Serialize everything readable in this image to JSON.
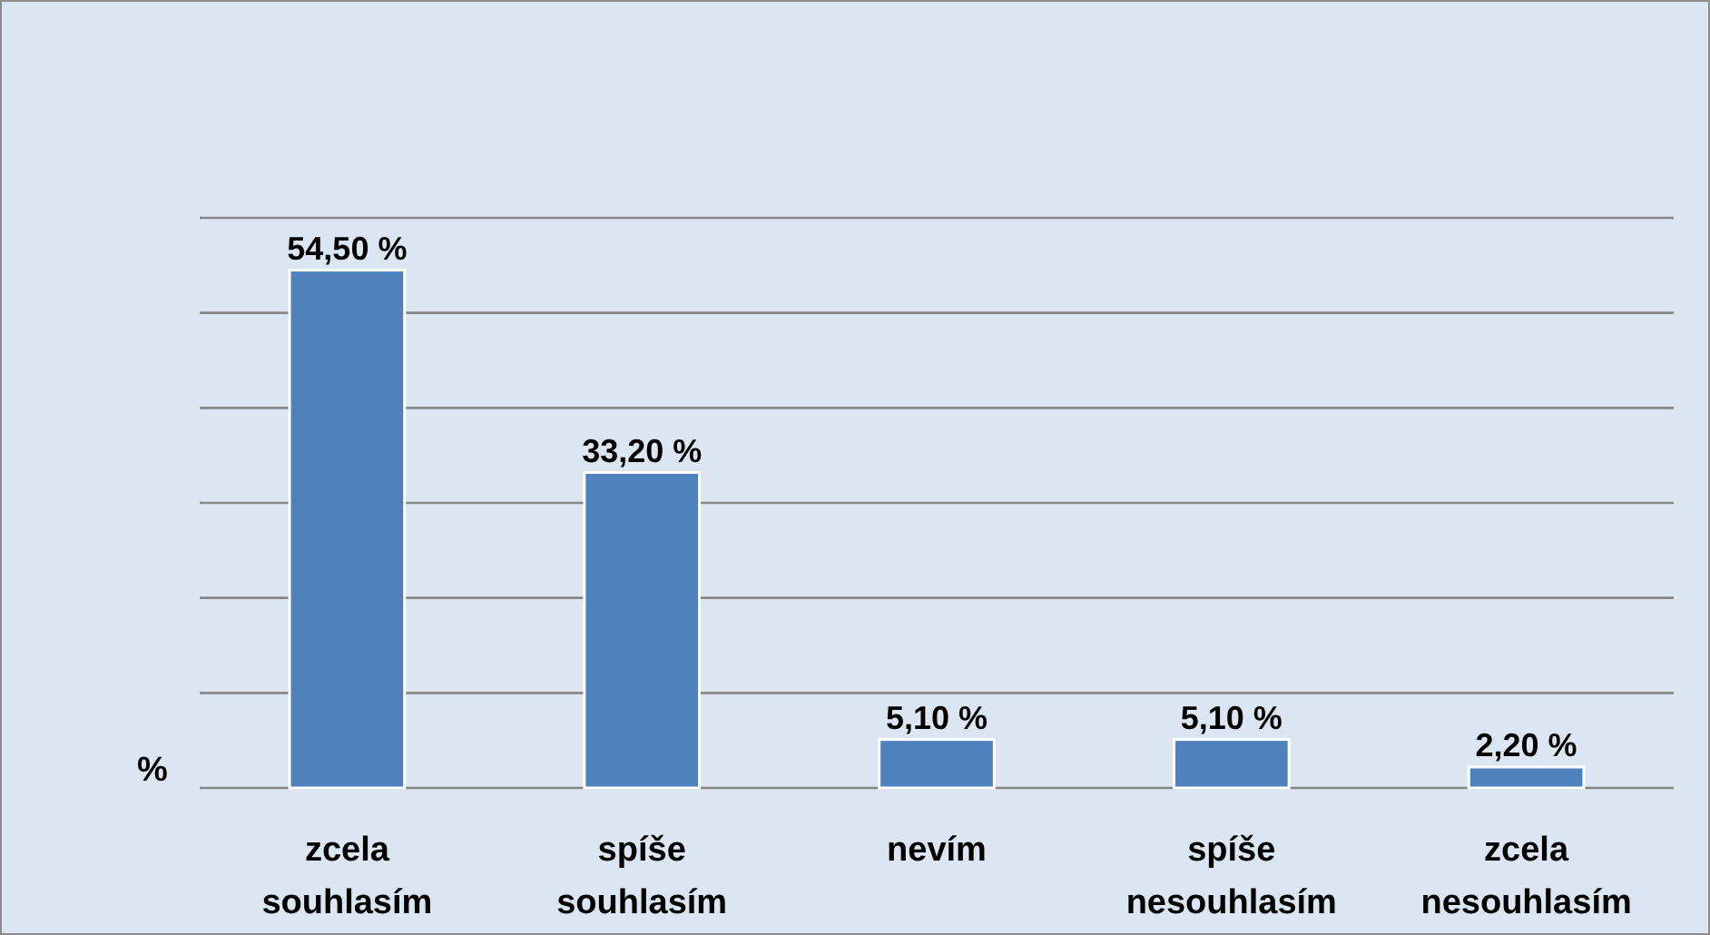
{
  "chart_data": {
    "type": "bar",
    "ylabel": "%",
    "categories": [
      "zcela souhlasím",
      "spíše souhlasím",
      "nevím",
      "spíše nesouhlasím",
      "zcela nesouhlasím"
    ],
    "values": [
      54.5,
      33.2,
      5.1,
      5.1,
      2.2
    ],
    "value_labels": [
      "54,50 %",
      "33,20 %",
      "5,10 %",
      "5,10 %",
      "2,20 %"
    ],
    "color": "#4f81bd",
    "ylim": [
      0,
      60
    ],
    "yticks": [
      {
        "value": 0,
        "label": null
      },
      {
        "value": 10,
        "label": null
      },
      {
        "value": 20,
        "label": null
      },
      {
        "value": 30,
        "label": null
      },
      {
        "value": 40,
        "label": null
      },
      {
        "value": 50,
        "label": null
      },
      {
        "value": 60,
        "label": null
      }
    ],
    "grid": "y",
    "tick_labels": "x"
  }
}
